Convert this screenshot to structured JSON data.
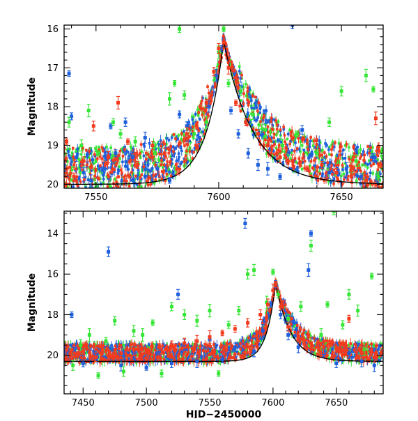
{
  "chart_data": [
    {
      "type": "scatter",
      "title": "",
      "xlabel": "",
      "ylabel": "Magnitude",
      "xlim": [
        7537,
        7667
      ],
      "ylim": [
        20.1,
        15.9
      ],
      "y_inverted": true,
      "xticks": [
        7550,
        7600,
        7650
      ],
      "yticks": [
        16,
        17,
        18,
        19,
        20
      ],
      "grid": false,
      "legend": "none",
      "peak": {
        "x": 7602,
        "y": 16.3
      },
      "series": [
        {
          "color": "#1e5fdc",
          "points": [
            [
              7539,
              17.15
            ],
            [
              7540,
              18.25
            ],
            [
              7542,
              19.3
            ],
            [
              7545,
              19.7
            ],
            [
              7548,
              19.9
            ],
            [
              7553,
              19.6
            ],
            [
              7556,
              18.5
            ],
            [
              7558,
              19.2
            ],
            [
              7562,
              18.4
            ],
            [
              7565,
              19.3
            ],
            [
              7570,
              18.8
            ],
            [
              7575,
              19.6
            ],
            [
              7580,
              19.9
            ],
            [
              7584,
              18.2
            ],
            [
              7587,
              18.5
            ],
            [
              7592,
              18.8
            ],
            [
              7596,
              18.0
            ],
            [
              7599,
              17.2
            ],
            [
              7601,
              16.5
            ],
            [
              7605,
              18.1
            ],
            [
              7608,
              18.7
            ],
            [
              7612,
              19.2
            ],
            [
              7616,
              19.5
            ],
            [
              7620,
              19.6
            ],
            [
              7625,
              19.8
            ],
            [
              7630,
              15.9
            ],
            [
              7634,
              18.6
            ],
            [
              7640,
              19.2
            ],
            [
              7645,
              19.7
            ],
            [
              7652,
              19.6
            ],
            [
              7658,
              19.8
            ],
            [
              7663,
              19.3
            ]
          ]
        },
        {
          "color": "#36e636",
          "points": [
            [
              7539,
              18.4
            ],
            [
              7544,
              19.0
            ],
            [
              7547,
              18.1
            ],
            [
              7551,
              19.2
            ],
            [
              7557,
              18.4
            ],
            [
              7560,
              18.7
            ],
            [
              7566,
              18.9
            ],
            [
              7574,
              19.2
            ],
            [
              7580,
              17.8
            ],
            [
              7582,
              17.4
            ],
            [
              7584,
              16.0
            ],
            [
              7586,
              17.7
            ],
            [
              7590,
              18.7
            ],
            [
              7595,
              18.4
            ],
            [
              7600,
              16.6
            ],
            [
              7602,
              16.0
            ],
            [
              7604,
              17.4
            ],
            [
              7609,
              17.6
            ],
            [
              7614,
              18.2
            ],
            [
              7619,
              18.6
            ],
            [
              7626,
              19.0
            ],
            [
              7632,
              18.7
            ],
            [
              7640,
              19.2
            ],
            [
              7645,
              18.4
            ],
            [
              7650,
              17.6
            ],
            [
              7656,
              19.4
            ],
            [
              7660,
              17.2
            ],
            [
              7663,
              17.55
            ],
            [
              7665,
              19.8
            ]
          ]
        },
        {
          "color": "#f23b1e",
          "points": [
            [
              7538,
              18.9
            ],
            [
              7541,
              19.8
            ],
            [
              7545,
              19.4
            ],
            [
              7549,
              18.5
            ],
            [
              7555,
              19.3
            ],
            [
              7559,
              17.9
            ],
            [
              7563,
              18.9
            ],
            [
              7567,
              19.5
            ],
            [
              7573,
              19.0
            ],
            [
              7578,
              19.2
            ],
            [
              7583,
              19.6
            ],
            [
              7587,
              18.7
            ],
            [
              7591,
              18.5
            ],
            [
              7595,
              17.9
            ],
            [
              7598,
              17.1
            ],
            [
              7600,
              16.5
            ],
            [
              7602,
              16.35
            ],
            [
              7604,
              17.0
            ],
            [
              7607,
              17.9
            ],
            [
              7611,
              18.4
            ],
            [
              7616,
              18.7
            ],
            [
              7620,
              19.0
            ],
            [
              7625,
              19.3
            ],
            [
              7630,
              19.4
            ],
            [
              7636,
              19.6
            ],
            [
              7642,
              19.5
            ],
            [
              7648,
              19.7
            ],
            [
              7654,
              19.8
            ],
            [
              7660,
              19.9
            ],
            [
              7664,
              18.3
            ],
            [
              7666,
              19.5
            ]
          ]
        }
      ]
    },
    {
      "type": "scatter",
      "title": "",
      "xlabel": "HJD−2450000",
      "ylabel": "Magnitude",
      "xlim": [
        7435,
        7687
      ],
      "ylim": [
        21.9,
        12.9
      ],
      "y_inverted": true,
      "xticks": [
        7450,
        7500,
        7550,
        7600,
        7650
      ],
      "yticks": [
        14,
        16,
        18,
        20
      ],
      "grid": false,
      "legend": "none",
      "peak": {
        "x": 7602,
        "y": 16.4
      },
      "series": [
        {
          "color": "#1e5fdc",
          "points": [
            [
              7441,
              18.0
            ],
            [
              7450,
              20.4
            ],
            [
              7460,
              20.0
            ],
            [
              7470,
              14.9
            ],
            [
              7480,
              20.5
            ],
            [
              7490,
              19.9
            ],
            [
              7500,
              20.6
            ],
            [
              7510,
              19.8
            ],
            [
              7520,
              20.4
            ],
            [
              7525,
              17.0
            ],
            [
              7530,
              19.5
            ],
            [
              7540,
              20.3
            ],
            [
              7550,
              19.2
            ],
            [
              7560,
              20.2
            ],
            [
              7570,
              19.6
            ],
            [
              7578,
              13.5
            ],
            [
              7585,
              19.8
            ],
            [
              7592,
              18.8
            ],
            [
              7598,
              17.5
            ],
            [
              7602,
              16.5
            ],
            [
              7606,
              18.0
            ],
            [
              7612,
              19.0
            ],
            [
              7620,
              19.6
            ],
            [
              7628,
              15.8
            ],
            [
              7630,
              14.0
            ],
            [
              7640,
              19.9
            ],
            [
              7650,
              20.4
            ],
            [
              7660,
              19.9
            ],
            [
              7670,
              20.3
            ],
            [
              7680,
              20.5
            ]
          ]
        },
        {
          "color": "#36e636",
          "points": [
            [
              7442,
              20.5
            ],
            [
              7448,
              19.5
            ],
            [
              7455,
              19.0
            ],
            [
              7462,
              21.0
            ],
            [
              7468,
              19.3
            ],
            [
              7475,
              18.3
            ],
            [
              7482,
              20.8
            ],
            [
              7490,
              18.8
            ],
            [
              7497,
              19.0
            ],
            [
              7505,
              18.4
            ],
            [
              7512,
              20.9
            ],
            [
              7520,
              17.6
            ],
            [
              7530,
              18.0
            ],
            [
              7540,
              18.3
            ],
            [
              7550,
              17.8
            ],
            [
              7557,
              20.9
            ],
            [
              7565,
              18.5
            ],
            [
              7573,
              17.8
            ],
            [
              7580,
              16.0
            ],
            [
              7585,
              15.8
            ],
            [
              7595,
              17.4
            ],
            [
              7600,
              15.9
            ],
            [
              7604,
              17.0
            ],
            [
              7612,
              18.2
            ],
            [
              7622,
              17.6
            ],
            [
              7630,
              14.6
            ],
            [
              7638,
              19.0
            ],
            [
              7643,
              17.5
            ],
            [
              7648,
              12.9
            ],
            [
              7655,
              18.5
            ],
            [
              7660,
              17.0
            ],
            [
              7667,
              17.8
            ],
            [
              7672,
              19.7
            ],
            [
              7678,
              16.1
            ]
          ]
        },
        {
          "color": "#f23b1e",
          "points": [
            [
              7440,
              20.0
            ],
            [
              7450,
              19.8
            ],
            [
              7460,
              20.1
            ],
            [
              7470,
              20.0
            ],
            [
              7480,
              19.9
            ],
            [
              7490,
              19.7
            ],
            [
              7500,
              19.8
            ],
            [
              7510,
              19.6
            ],
            [
              7520,
              19.5
            ],
            [
              7530,
              19.4
            ],
            [
              7540,
              19.3
            ],
            [
              7550,
              19.1
            ],
            [
              7560,
              18.9
            ],
            [
              7570,
              18.7
            ],
            [
              7580,
              18.4
            ],
            [
              7590,
              18.0
            ],
            [
              7596,
              17.5
            ],
            [
              7600,
              16.8
            ],
            [
              7602,
              16.5
            ],
            [
              7606,
              17.6
            ],
            [
              7612,
              18.6
            ],
            [
              7620,
              19.1
            ],
            [
              7630,
              19.4
            ],
            [
              7640,
              19.6
            ],
            [
              7650,
              19.7
            ],
            [
              7660,
              18.2
            ],
            [
              7670,
              19.9
            ],
            [
              7680,
              20.1
            ]
          ]
        }
      ]
    }
  ]
}
